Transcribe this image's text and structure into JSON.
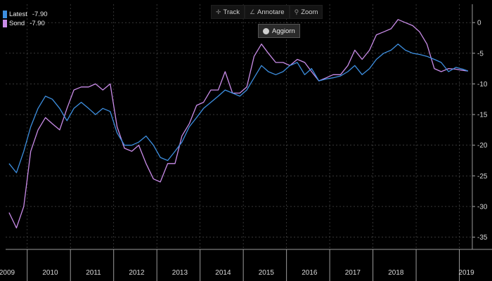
{
  "toolbar": {
    "track_label": "Track",
    "annotate_label": "Annotare",
    "zoom_label": "Zoom",
    "update_label": "Aggiorn"
  },
  "legend": [
    {
      "name": "Latest",
      "value": "-7.90",
      "color": "#3d8fe0"
    },
    {
      "name": "Sond",
      "value": "-7.90",
      "color": "#c98ce8"
    }
  ],
  "chart_data": {
    "type": "line",
    "xlim": [
      2008.5,
      2019.3
    ],
    "ylim": [
      -37,
      3
    ],
    "y_ticks": [
      0,
      -5,
      -10,
      -15,
      -20,
      -25,
      -30,
      -35
    ],
    "x_tick_labels": [
      "2009",
      "2010",
      "2011",
      "2012",
      "2013",
      "2014",
      "2015",
      "2016",
      "2017",
      "2018",
      "2019"
    ],
    "grid": true,
    "legend_position": "top-left",
    "series": [
      {
        "name": "Latest",
        "color": "#3d8fe0",
        "x": [
          2008.58,
          2008.75,
          2008.92,
          2009.08,
          2009.25,
          2009.42,
          2009.58,
          2009.75,
          2009.92,
          2010.08,
          2010.25,
          2010.42,
          2010.58,
          2010.75,
          2010.92,
          2011.08,
          2011.25,
          2011.42,
          2011.58,
          2011.75,
          2011.92,
          2012.08,
          2012.25,
          2012.42,
          2012.58,
          2012.75,
          2012.92,
          2013.08,
          2013.25,
          2013.42,
          2013.58,
          2013.75,
          2013.92,
          2014.08,
          2014.25,
          2014.42,
          2014.58,
          2014.75,
          2014.92,
          2015.08,
          2015.25,
          2015.42,
          2015.58,
          2015.75,
          2015.92,
          2016.08,
          2016.25,
          2016.42,
          2016.58,
          2016.75,
          2016.92,
          2017.08,
          2017.25,
          2017.42,
          2017.58,
          2017.75,
          2017.92,
          2018.08,
          2018.25,
          2018.42,
          2018.58,
          2018.75,
          2018.92,
          2019.08,
          2019.2
        ],
        "values": [
          -23,
          -24.5,
          -21,
          -17,
          -14,
          -12,
          -12.5,
          -14,
          -16,
          -14,
          -13,
          -14,
          -15,
          -14,
          -14.5,
          -18,
          -20,
          -20,
          -19.5,
          -18.5,
          -20,
          -22,
          -22.5,
          -21,
          -19.5,
          -17,
          -15.5,
          -14,
          -13,
          -12,
          -11,
          -11.5,
          -12,
          -11,
          -9,
          -7,
          -8,
          -8.5,
          -8,
          -7,
          -6.5,
          -8.5,
          -7.5,
          -9.5,
          -9.2,
          -9,
          -8.7,
          -8,
          -7,
          -8.5,
          -7.5,
          -6,
          -5,
          -4.5,
          -3.5,
          -4.5,
          -5,
          -5.2,
          -5.5,
          -6,
          -6.5,
          -8,
          -7.3,
          -7.6,
          -7.9
        ]
      },
      {
        "name": "Sond",
        "color": "#c98ce8",
        "x": [
          2008.58,
          2008.75,
          2008.92,
          2009.08,
          2009.25,
          2009.42,
          2009.58,
          2009.75,
          2009.92,
          2010.08,
          2010.25,
          2010.42,
          2010.58,
          2010.75,
          2010.92,
          2011.08,
          2011.25,
          2011.42,
          2011.58,
          2011.75,
          2011.92,
          2012.08,
          2012.25,
          2012.42,
          2012.58,
          2012.75,
          2012.92,
          2013.08,
          2013.25,
          2013.42,
          2013.58,
          2013.75,
          2013.92,
          2014.08,
          2014.25,
          2014.42,
          2014.58,
          2014.75,
          2014.92,
          2015.08,
          2015.25,
          2015.42,
          2015.58,
          2015.75,
          2015.92,
          2016.08,
          2016.25,
          2016.42,
          2016.58,
          2016.75,
          2016.92,
          2017.08,
          2017.25,
          2017.42,
          2017.58,
          2017.75,
          2017.92,
          2018.08,
          2018.25,
          2018.42,
          2018.58,
          2018.75,
          2018.92,
          2019.08,
          2019.2
        ],
        "values": [
          -31,
          -33.5,
          -30,
          -21,
          -17.5,
          -15.5,
          -16.5,
          -17.5,
          -14,
          -11,
          -10.5,
          -10.5,
          -10,
          -11,
          -10,
          -17,
          -20.5,
          -21,
          -20,
          -23,
          -25.5,
          -26,
          -23,
          -23,
          -18.5,
          -16.5,
          -13.5,
          -13,
          -11,
          -11,
          -8,
          -11.5,
          -11.5,
          -10.5,
          -5.5,
          -3.5,
          -5,
          -6.5,
          -6.5,
          -7,
          -6,
          -6.5,
          -8,
          -9.5,
          -9,
          -8.5,
          -8.5,
          -7,
          -4.5,
          -6,
          -4.5,
          -2,
          -1.5,
          -1,
          0.5,
          0,
          -0.5,
          -1.5,
          -3.5,
          -7.5,
          -8,
          -7.5,
          -7.6,
          -7.8,
          -7.9
        ]
      }
    ]
  }
}
